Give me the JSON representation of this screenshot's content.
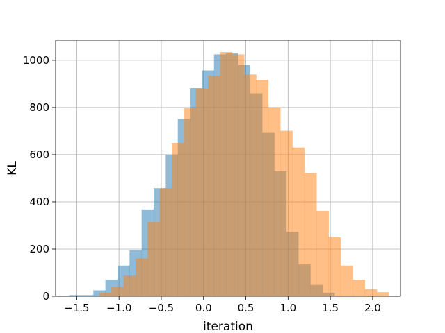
{
  "chart_data": {
    "type": "bar",
    "subtype": "overlaid-histogram",
    "title": "",
    "xlabel": "iteration",
    "ylabel": "KL",
    "xlim": [
      -1.75,
      2.33
    ],
    "ylim": [
      0,
      1085
    ],
    "xticks": [
      -1.5,
      -1.0,
      -0.5,
      0.0,
      0.5,
      1.0,
      1.5,
      2.0
    ],
    "xtick_labels": [
      "−1.5",
      "−1.0",
      "−0.5",
      "0.0",
      "0.5",
      "1.0",
      "1.5",
      "2.0"
    ],
    "yticks": [
      0,
      200,
      400,
      600,
      800,
      1000
    ],
    "ytick_labels": [
      "0",
      "200",
      "400",
      "600",
      "800",
      "1000"
    ],
    "grid": true,
    "legend": false,
    "series": [
      {
        "color": "#1f77b4",
        "opacity": 0.5,
        "bin_width": 0.1427,
        "bin_start": -1.5891,
        "values": [
          5,
          5,
          25,
          70,
          130,
          195,
          368,
          458,
          600,
          752,
          882,
          957,
          1025,
          1030,
          980,
          860,
          695,
          530,
          273,
          135,
          48,
          15
        ]
      },
      {
        "color": "#ff7f0e",
        "opacity": 0.5,
        "bin_width": 0.1427,
        "bin_start": -1.232,
        "values": [
          15,
          40,
          88,
          160,
          315,
          458,
          650,
          797,
          880,
          935,
          1035,
          1025,
          940,
          917,
          800,
          701,
          630,
          523,
          362,
          250,
          130,
          70,
          30,
          17
        ]
      }
    ]
  }
}
